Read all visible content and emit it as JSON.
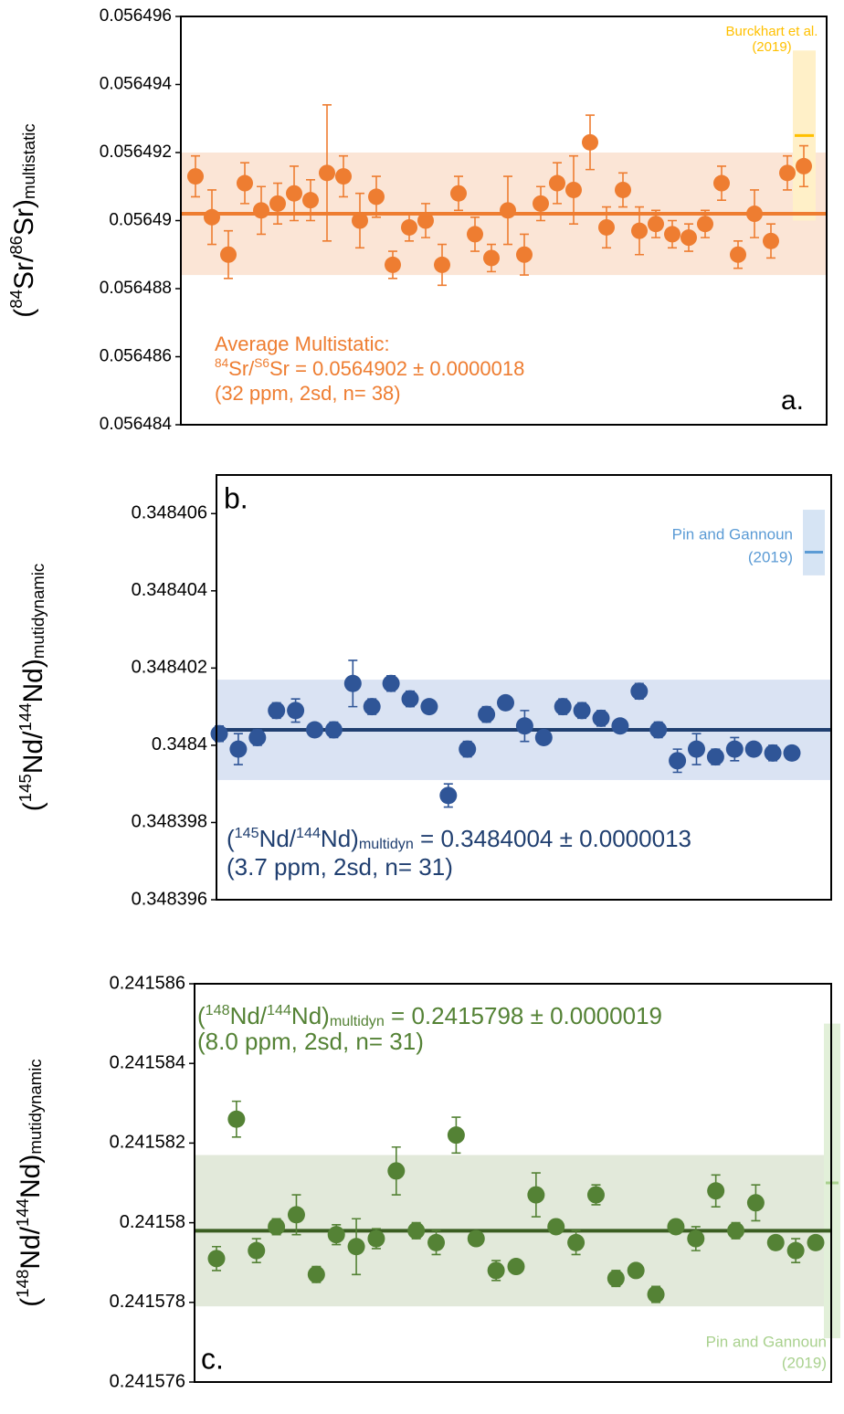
{
  "chart_data": [
    {
      "type": "scatter",
      "ylabel": {
        "parts": [
          "(",
          "84",
          "Sr/",
          "86",
          "Sr)",
          "multistatic"
        ],
        "styles": [
          "normal",
          "super",
          "normal",
          "super",
          "normal",
          "sub"
        ]
      },
      "ylim": [
        0.056484,
        0.056496
      ],
      "yticks": [
        0.056484,
        0.056486,
        0.056488,
        0.05649,
        0.056492,
        0.056494,
        0.056496
      ],
      "color": "#ee7d31",
      "line_color": "#ee7d31",
      "band_color": "#fbe5d6",
      "values": [
        0.0564913,
        0.0564901,
        0.056489,
        0.0564911,
        0.0564903,
        0.0564905,
        0.0564908,
        0.0564906,
        0.0564914,
        0.0564913,
        0.05649,
        0.0564907,
        0.0564887,
        0.0564898,
        0.05649,
        0.0564887,
        0.0564908,
        0.0564896,
        0.0564889,
        0.0564903,
        0.056489,
        0.0564905,
        0.0564911,
        0.0564909,
        0.0564923,
        0.0564898,
        0.0564909,
        0.0564897,
        0.0564899,
        0.0564896,
        0.0564895,
        0.0564899,
        0.0564911,
        0.056489,
        0.0564902,
        0.0564894,
        0.0564914,
        0.0564916
      ],
      "errors": [
        6e-07,
        8e-07,
        7e-07,
        6e-07,
        7e-07,
        6e-07,
        8e-07,
        6e-07,
        2e-06,
        6e-07,
        8e-07,
        6e-07,
        4e-07,
        4e-07,
        5e-07,
        6e-07,
        5e-07,
        5e-07,
        4e-07,
        1e-06,
        6e-07,
        5e-07,
        6e-07,
        1e-06,
        8e-07,
        6e-07,
        5e-07,
        7e-07,
        4e-07,
        4e-07,
        4e-07,
        4e-07,
        5e-07,
        4e-07,
        7e-07,
        5e-07,
        5e-07,
        6e-07
      ],
      "mean": 0.0564902,
      "mean_error": 1.8e-06,
      "annotation": [
        {
          "parts": [
            "Average Multistatic:"
          ],
          "styles": [
            "normal"
          ]
        },
        {
          "parts": [
            "84",
            "Sr/",
            "S6",
            "Sr = 0.0564902 ± 0.0000018"
          ],
          "styles": [
            "super",
            "normal",
            "super",
            "normal"
          ]
        },
        {
          "parts": [
            "(32 ppm, 2sd, n= 38)"
          ],
          "styles": [
            "normal"
          ]
        }
      ],
      "annotation_color": "#ee7d31",
      "panel_label": "a.",
      "reference": {
        "label": [
          "Burckhart et al.",
          "(2019)"
        ],
        "value": 0.0564925,
        "band": [
          0.05649,
          0.056495
        ],
        "color": "#ffc000",
        "band_color": "#fff0c8"
      }
    },
    {
      "type": "scatter",
      "ylabel": {
        "parts": [
          "(",
          "145",
          "Nd/",
          "144",
          "Nd)",
          "mutidynamic"
        ],
        "styles": [
          "normal",
          "super",
          "normal",
          "super",
          "normal",
          "sub"
        ]
      },
      "ylim": [
        0.348396,
        0.348407
      ],
      "yticks": [
        0.348396,
        0.348398,
        0.3484,
        0.348402,
        0.348404,
        0.348406
      ],
      "color": "#2f5597",
      "line_color": "#203f70",
      "band_color": "#dae3f3",
      "values": [
        0.3484003,
        0.3483999,
        0.3484002,
        0.3484009,
        0.3484009,
        0.3484004,
        0.3484004,
        0.3484016,
        0.348401,
        0.3484016,
        0.3484012,
        0.348401,
        0.3483987,
        0.3483999,
        0.3484008,
        0.3484011,
        0.3484005,
        0.3484002,
        0.348401,
        0.3484009,
        0.3484007,
        0.3484005,
        0.3484014,
        0.3484004,
        0.3483996,
        0.3483999,
        0.3483997,
        0.3483999,
        0.3483999,
        0.3483998,
        0.3483998
      ],
      "errors": [
        2e-07,
        4e-07,
        2e-07,
        2e-07,
        3e-07,
        1e-07,
        2e-07,
        6e-07,
        2e-07,
        2e-07,
        2e-07,
        1e-07,
        3e-07,
        2e-07,
        2e-07,
        1e-07,
        4e-07,
        1e-07,
        2e-07,
        2e-07,
        2e-07,
        1e-07,
        2e-07,
        2e-07,
        3e-07,
        4e-07,
        2e-07,
        3e-07,
        1e-07,
        2e-07,
        1e-07
      ],
      "mean": 0.3484004,
      "mean_error": 1.3e-06,
      "annotation": [
        {
          "parts": [
            "(",
            "145",
            "Nd/",
            "144",
            "Nd)",
            "multidyn",
            " = 0.3484004 ± 0.0000013"
          ],
          "styles": [
            "normal",
            "super",
            "normal",
            "super",
            "normal",
            "sub",
            "normal"
          ]
        },
        {
          "parts": [
            "(3.7 ppm, 2sd, n= 31)"
          ],
          "styles": [
            "normal"
          ]
        }
      ],
      "annotation_color": "#203f70",
      "panel_label": "b.",
      "reference": {
        "label": [
          "Pin and Gannoun",
          "(2019)"
        ],
        "value": 0.348405,
        "band": [
          0.3484044,
          0.3484061
        ],
        "color": "#5b9bd5",
        "band_color": "#d6e4f4"
      }
    },
    {
      "type": "scatter",
      "ylabel": {
        "parts": [
          "(",
          "148",
          "Nd/",
          "144",
          "Nd)",
          "mutidynamic"
        ],
        "styles": [
          "normal",
          "super",
          "normal",
          "super",
          "normal",
          "sub"
        ]
      },
      "ylim": [
        0.241576,
        0.241586
      ],
      "yticks": [
        0.241576,
        0.241578,
        0.24158,
        0.241582,
        0.241584,
        0.241586
      ],
      "color": "#548235",
      "line_color": "#3b5e22",
      "band_color": "#e2e9da",
      "values": [
        0.2415791,
        0.2415826,
        0.2415793,
        0.2415799,
        0.2415802,
        0.2415787,
        0.2415797,
        0.2415794,
        0.2415796,
        0.2415813,
        0.2415798,
        0.2415795,
        0.2415822,
        0.2415796,
        0.2415788,
        0.2415789,
        0.2415807,
        0.2415799,
        0.2415795,
        0.2415807,
        0.2415786,
        0.2415788,
        0.2415782,
        0.2415799,
        0.2415796,
        0.2415808,
        0.2415798,
        0.2415805,
        0.2415795,
        0.2415793,
        0.2415795
      ],
      "errors": [
        3e-07,
        4.5e-07,
        3e-07,
        2e-07,
        5e-07,
        2e-07,
        2.5e-07,
        7e-07,
        2.5e-07,
        6e-07,
        2e-07,
        3e-07,
        4.5e-07,
        1e-07,
        2.5e-07,
        1e-07,
        5.5e-07,
        1e-07,
        3e-07,
        2.5e-07,
        2e-07,
        1e-07,
        2e-07,
        1e-07,
        3e-07,
        4e-07,
        2e-07,
        4.5e-07,
        1.5e-07,
        3e-07,
        1e-07
      ],
      "mean": 0.2415798,
      "mean_error": 1.9e-06,
      "annotation": [
        {
          "parts": [
            "(",
            "148",
            "Nd/",
            "144",
            "Nd)",
            "multidyn",
            " = 0.2415798 ± 0.0000019"
          ],
          "styles": [
            "normal",
            "super",
            "normal",
            "super",
            "normal",
            "sub",
            "normal"
          ]
        },
        {
          "parts": [
            "(8.0 ppm, 2sd, n= 31)"
          ],
          "styles": [
            "normal"
          ]
        }
      ],
      "annotation_color": "#548235",
      "panel_label": "c.",
      "reference": {
        "label": [
          "Pin and Gannoun",
          "(2019)"
        ],
        "value": 0.241581,
        "band": [
          0.2415771,
          0.241585
        ],
        "color": "#a9d18e",
        "band_color": "#e2f0d9"
      }
    }
  ]
}
